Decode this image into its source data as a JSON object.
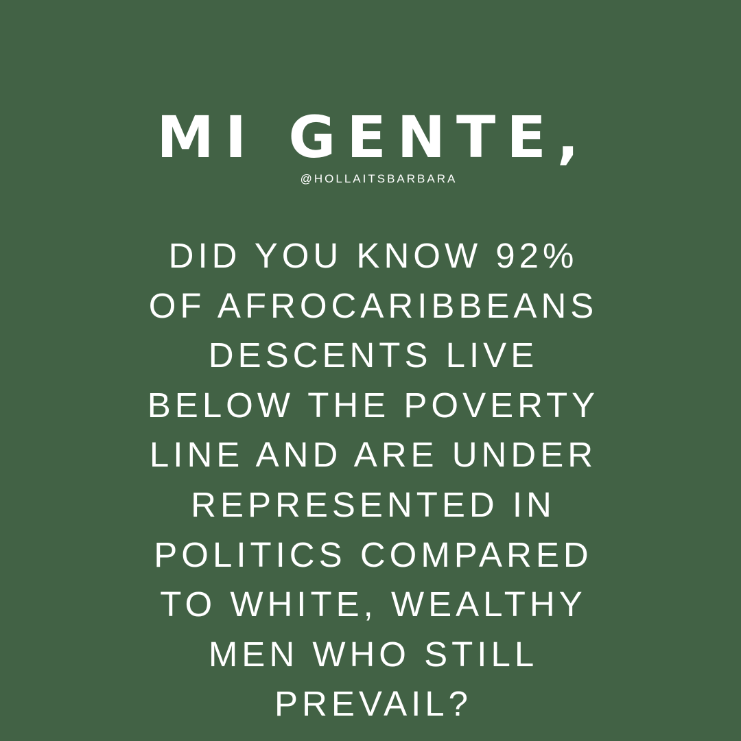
{
  "post": {
    "background_color": "#426245",
    "text_color": "#ffffff",
    "headline": "MI GENTE,",
    "handle": "@HOLLAITSBARBARA",
    "body_lines": [
      "DID YOU KNOW 92%",
      "OF AFROCARIBBEANS",
      "DESCENTS LIVE",
      "BELOW THE POVERTY",
      "LINE AND ARE UNDER",
      "REPRESENTED IN",
      "POLITICS COMPARED",
      "TO WHITE, WEALTHY",
      "MEN WHO STILL",
      "PREVAIL?"
    ]
  }
}
